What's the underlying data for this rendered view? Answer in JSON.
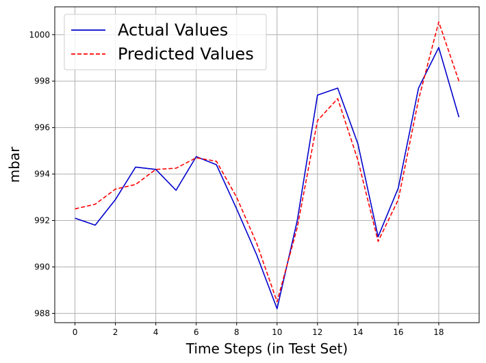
{
  "chart_data": {
    "type": "line",
    "title": "",
    "xlabel": "Time Steps (in Test Set)",
    "ylabel": "mbar",
    "xlim": [
      -1,
      20
    ],
    "ylim": [
      987.6,
      1001.2
    ],
    "x_ticks": [
      0,
      2,
      4,
      6,
      8,
      10,
      12,
      14,
      16,
      18
    ],
    "y_ticks": [
      988,
      990,
      992,
      994,
      996,
      998,
      1000
    ],
    "grid": true,
    "legend_position": "top-left",
    "x": [
      0,
      1,
      2,
      3,
      4,
      5,
      6,
      7,
      8,
      9,
      10,
      11,
      12,
      13,
      14,
      15,
      16,
      17,
      18,
      19
    ],
    "series": [
      {
        "name": "Actual Values",
        "color": "#0000cc",
        "style": "solid",
        "values": [
          992.1,
          991.8,
          992.9,
          994.3,
          994.2,
          993.3,
          994.75,
          994.4,
          992.5,
          990.5,
          988.2,
          992.0,
          997.4,
          997.7,
          995.3,
          991.3,
          993.4,
          997.7,
          999.45,
          996.45
        ]
      },
      {
        "name": "Predicted Values",
        "color": "#ff0000",
        "style": "dashed",
        "values": [
          992.5,
          992.7,
          993.35,
          993.55,
          994.2,
          994.25,
          994.7,
          994.55,
          993.0,
          991.0,
          988.5,
          991.7,
          996.3,
          997.25,
          994.6,
          991.1,
          992.9,
          997.2,
          1000.55,
          998.0
        ]
      }
    ]
  }
}
